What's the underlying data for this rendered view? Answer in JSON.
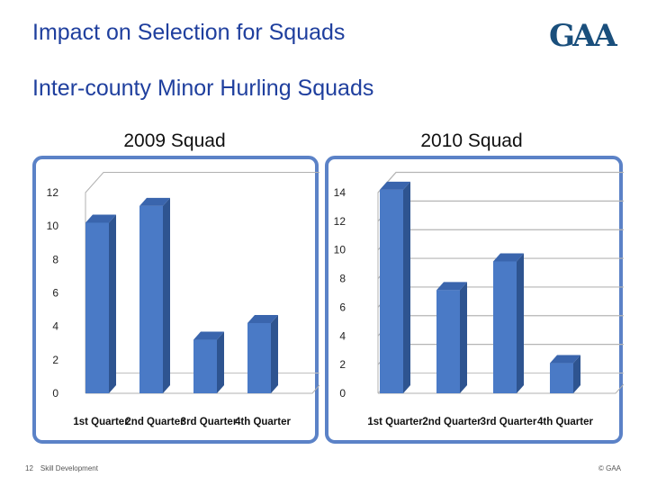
{
  "slide": {
    "title": "Impact on Selection for Squads",
    "subtitle": "Inter-county Minor Hurling Squads",
    "logo_text": "GAA",
    "footer_page": "12",
    "footer_text": "Skill Development",
    "footer_copyright": "© GAA"
  },
  "colors": {
    "bar_front": "#4a7ac6",
    "bar_side": "#2e5490",
    "bar_top": "#3a65ad",
    "frame_border": "#5b82c7",
    "title_blue": "#1f3f9e"
  },
  "chart_data": [
    {
      "type": "bar",
      "title": "2009 Squad",
      "categories": [
        "1st Quarter",
        "2nd Quarter",
        "3rd Quarter",
        "4th Quarter"
      ],
      "values": [
        10.2,
        11.2,
        3.2,
        4.2
      ],
      "yticks": [
        "0",
        "2",
        "4",
        "6",
        "8",
        "10",
        "12"
      ],
      "ylim": [
        0,
        12
      ],
      "grid": false,
      "legend": "none"
    },
    {
      "type": "bar",
      "title": "2010 Squad",
      "categories": [
        "1st Quarter",
        "2nd Quarter",
        "3rd Quarter",
        "4th Quarter"
      ],
      "values": [
        14.2,
        7.2,
        9.2,
        2.1
      ],
      "yticks": [
        "0",
        "2",
        "4",
        "6",
        "8",
        "10",
        "12",
        "14"
      ],
      "ylim": [
        0,
        14
      ],
      "grid": true,
      "legend": "none"
    }
  ]
}
